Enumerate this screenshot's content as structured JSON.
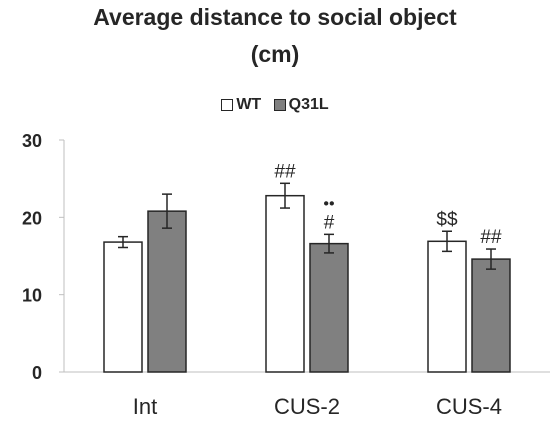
{
  "chart_data": {
    "type": "bar",
    "title": "Average distance to social object (cm)",
    "title_lines": [
      "Average distance to social object",
      "(cm)"
    ],
    "categories": [
      "Int",
      "CUS-2",
      "CUS-4"
    ],
    "series": [
      {
        "name": "WT",
        "color": "#ffffff",
        "values": [
          16.8,
          22.8,
          16.9
        ],
        "errors": [
          0.7,
          1.6,
          1.3
        ]
      },
      {
        "name": "Q31L",
        "color": "#808080",
        "values": [
          20.8,
          16.6,
          14.6
        ],
        "errors": [
          2.2,
          1.2,
          1.3
        ]
      }
    ],
    "annotations": [
      {
        "category": "CUS-2",
        "series": "WT",
        "text": "##"
      },
      {
        "category": "CUS-2",
        "series": "Q31L",
        "text": "#"
      },
      {
        "category": "CUS-2",
        "series": "Q31L",
        "text": "••"
      },
      {
        "category": "CUS-4",
        "series": "WT",
        "text": "$$"
      },
      {
        "category": "CUS-4",
        "series": "Q31L",
        "text": "##"
      }
    ],
    "ylim": [
      0,
      30
    ],
    "yticks": [
      0,
      10,
      20,
      30
    ],
    "grid": false,
    "legend_position": "top",
    "xlabel": "",
    "ylabel": ""
  }
}
